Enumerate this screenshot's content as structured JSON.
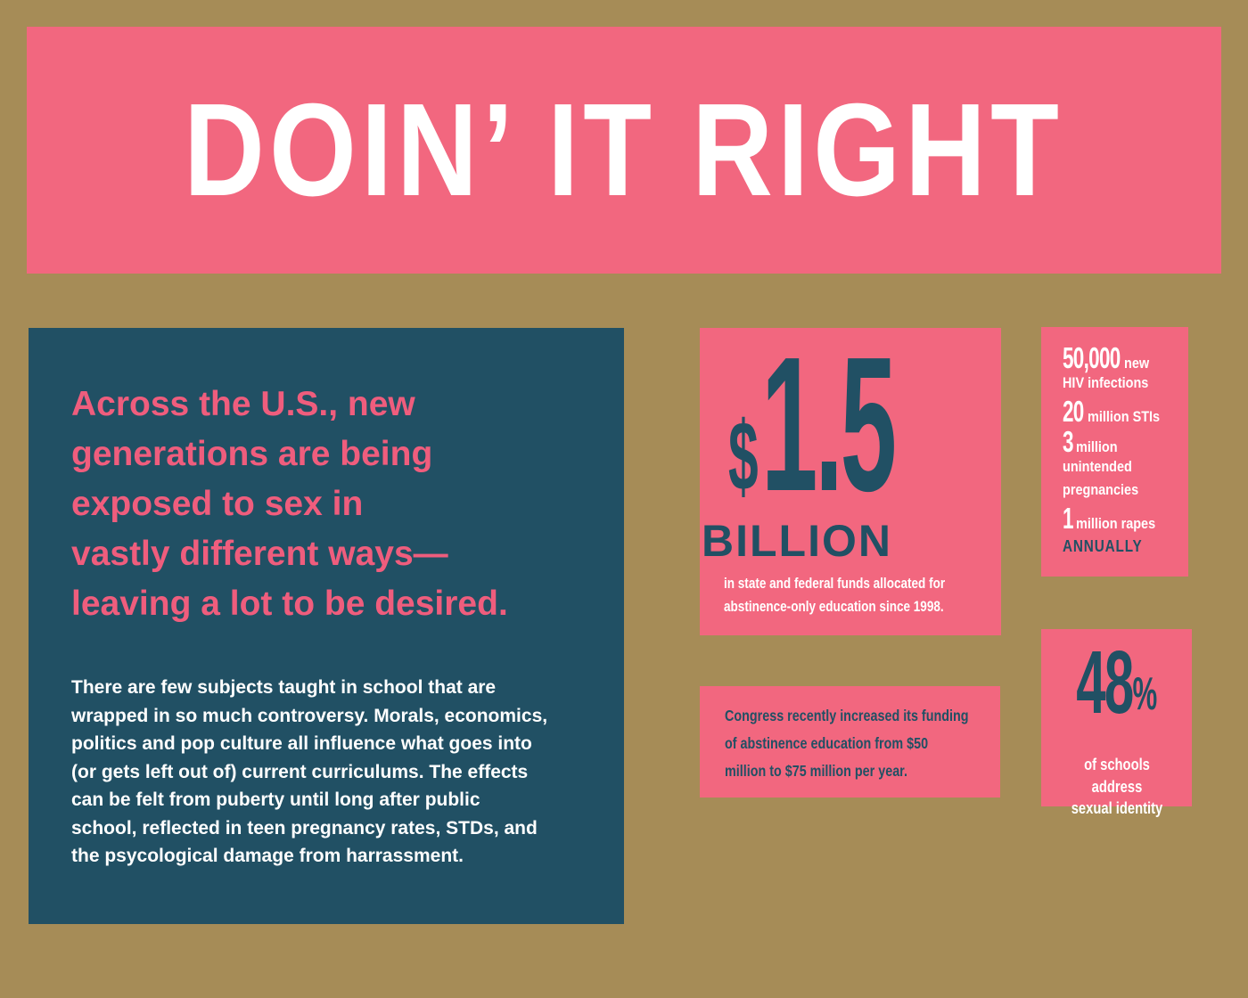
{
  "colors": {
    "pink": "#f2677f",
    "pink_text": "#ef5d7d",
    "teal": "#215064",
    "tan": "#a68c57",
    "white": "#ffffff"
  },
  "banner": {
    "title": "DOIN’ IT RIGHT"
  },
  "intro": {
    "headline": "Across the U.S., new\ngenerations are being\nexposed to sex in\nvastly different ways—\nleaving a lot to be desired.",
    "body": "There are few subjects taught in school that are\nwrapped in so much controversy. Morals, economics,\npolitics and pop culture all influence what goes into\n(or gets left out of) current curriculums. The effects\ncan be felt from puberty until long after public\nschool, reflected in teen pregnancy rates, STDs, and\nthe psycological damage from harrassment."
  },
  "billion_box": {
    "currency": "$",
    "amount": "1.5",
    "unit": "BILLION",
    "caption": "in state and federal funds allocated for\nabstinence-only education since 1998."
  },
  "stats_box": {
    "items": [
      {
        "num": "50,000",
        "inline": "new",
        "below": "HIV infections"
      },
      {
        "num": "20",
        "inline": "million STIs"
      },
      {
        "num": "3",
        "inline": "million",
        "below": "unintended\npregnancies"
      },
      {
        "num": "1",
        "inline": "million rapes"
      }
    ],
    "footer": "ANNUALLY"
  },
  "congress_box": {
    "text": "Congress recently increased its funding\nof abstinence education from $50\nmillion to $75 million per year."
  },
  "identity_box": {
    "number": "48",
    "percent": "%",
    "caption": "of schools\naddress\nsexual identity"
  }
}
